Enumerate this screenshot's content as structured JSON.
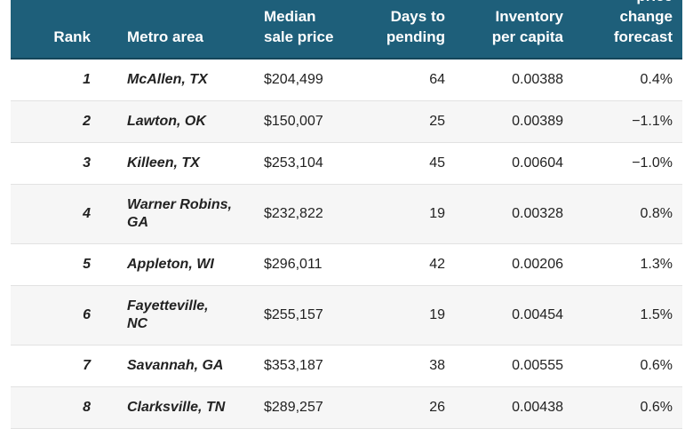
{
  "table": {
    "columns": [
      "Rank",
      "Metro area",
      "Median sale price",
      "Days to pending",
      "Inventory per capita",
      "price change forecast"
    ],
    "rows": [
      [
        "1",
        "McAllen, TX",
        "$204,499",
        "64",
        "0.00388",
        "0.4%"
      ],
      [
        "2",
        "Lawton, OK",
        "$150,007",
        "25",
        "0.00389",
        "−1.1%"
      ],
      [
        "3",
        "Killeen, TX",
        "$253,104",
        "45",
        "0.00604",
        "−1.0%"
      ],
      [
        "4",
        "Warner Robins, GA",
        "$232,822",
        "19",
        "0.00328",
        "0.8%"
      ],
      [
        "5",
        "Appleton, WI",
        "$296,011",
        "42",
        "0.00206",
        "1.3%"
      ],
      [
        "6",
        "Fayetteville, NC",
        "$255,157",
        "19",
        "0.00454",
        "1.5%"
      ],
      [
        "7",
        "Savannah, GA",
        "$353,187",
        "38",
        "0.00555",
        "0.6%"
      ],
      [
        "8",
        "Clarksville, TN",
        "$289,257",
        "26",
        "0.00438",
        "0.6%"
      ]
    ]
  }
}
